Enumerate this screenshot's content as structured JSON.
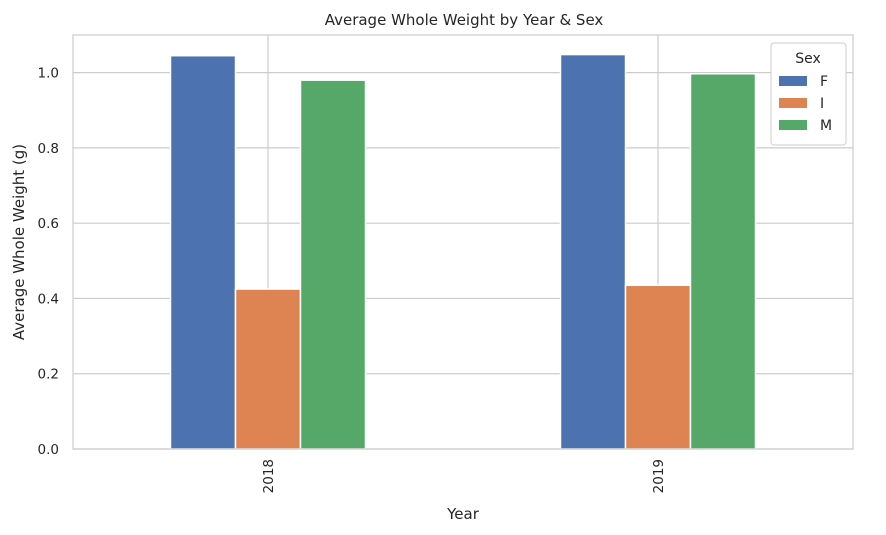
{
  "chart_data": {
    "type": "bar",
    "title": "Average Whole Weight by Year & Sex",
    "xlabel": "Year",
    "ylabel": "Average Whole Weight (g)",
    "categories": [
      "2018",
      "2019"
    ],
    "series": [
      {
        "name": "F",
        "values": [
          1.045,
          1.048
        ],
        "color": "#4c72b0"
      },
      {
        "name": "I",
        "values": [
          0.425,
          0.435
        ],
        "color": "#dd8452"
      },
      {
        "name": "M",
        "values": [
          0.98,
          0.997
        ],
        "color": "#55a868"
      }
    ],
    "ylim": [
      0,
      1.1
    ],
    "yticks": [
      0.0,
      0.2,
      0.4,
      0.6,
      0.8,
      1.0
    ],
    "ytick_labels": [
      "0.0",
      "0.2",
      "0.4",
      "0.6",
      "0.8",
      "1.0"
    ],
    "grid": true,
    "legend": {
      "title": "Sex",
      "placement": "top-right"
    },
    "x_tick_rotation": "vertical"
  }
}
